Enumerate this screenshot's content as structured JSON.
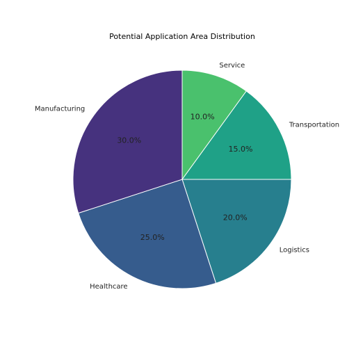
{
  "chart_data": {
    "type": "pie",
    "title": "Potential Application Area Distribution",
    "start_angle_deg": 90,
    "direction": "clockwise",
    "slices": [
      {
        "label": "Service",
        "value": 10.0,
        "pct_label": "10.0%",
        "color": "#4ac16d"
      },
      {
        "label": "Transportation",
        "value": 15.0,
        "pct_label": "15.0%",
        "color": "#1fa187"
      },
      {
        "label": "Logistics",
        "value": 20.0,
        "pct_label": "20.0%",
        "color": "#277f8e"
      },
      {
        "label": "Healthcare",
        "value": 25.0,
        "pct_label": "25.0%",
        "color": "#365c8d"
      },
      {
        "label": "Manufacturing",
        "value": 30.0,
        "pct_label": "30.0%",
        "color": "#46327e"
      }
    ]
  }
}
